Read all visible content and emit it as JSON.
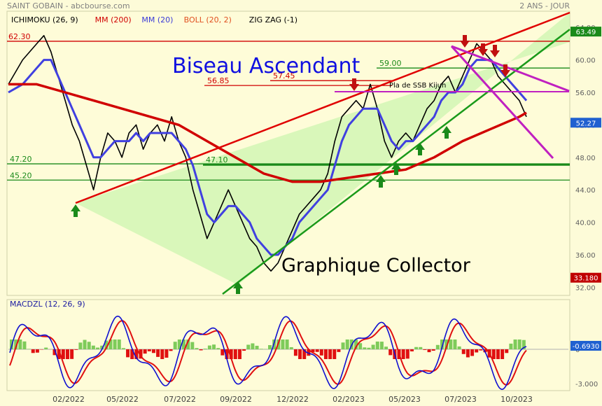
{
  "header": {
    "source": "SAINT GOBAIN - abcbourse.com",
    "period": "2 ANS - JOUR",
    "legend": [
      {
        "text": "ICHIMOKU (26, 9)",
        "color": "#000000"
      },
      {
        "text": "MM (200)",
        "color": "#d00000"
      },
      {
        "text": "MM (20)",
        "color": "#3a3ad8"
      },
      {
        "text": "BOLL (20, 2)",
        "color": "#e05020"
      },
      {
        "text": "ZIG ZAG (-1)",
        "color": "#000000"
      }
    ]
  },
  "annotations": {
    "pattern": "Biseau Ascendant",
    "collector": "Graphique Collector",
    "kijun": "Pla de SSB Kijun"
  },
  "chart_data": {
    "type": "line",
    "x_ticks": [
      "02/2022",
      "05/2022",
      "07/2022",
      "09/2022",
      "12/2022",
      "02/2023",
      "05/2023",
      "07/2023",
      "10/2023"
    ],
    "y_ticks": [
      32,
      36,
      40,
      44,
      48,
      52,
      56,
      60,
      64
    ],
    "ylim": [
      31,
      66
    ],
    "levels": [
      {
        "label": "62.30",
        "value": 62.3,
        "color": "#d00000"
      },
      {
        "label": "56.85",
        "value": 56.85,
        "color": "#d00000"
      },
      {
        "label": "57.45",
        "value": 57.45,
        "color": "#d00000"
      },
      {
        "label": "59.00",
        "value": 59.0,
        "color": "#1a8a1a"
      },
      {
        "label": "47.20",
        "value": 47.2,
        "color": "#1a8a1a"
      },
      {
        "label": "47.10",
        "value": 47.1,
        "color": "#1a8a1a"
      },
      {
        "label": "45.20",
        "value": 45.2,
        "color": "#1a8a1a"
      }
    ],
    "price_badges": [
      {
        "label": "63.49",
        "value": 63.49,
        "bg": "#1a8a1a"
      },
      {
        "label": "52.27",
        "value": 52.27,
        "bg": "#2060d0"
      },
      {
        "label": "33.180",
        "value": 33.18,
        "bg": "#c00000"
      }
    ],
    "series": [
      {
        "name": "Cours",
        "color": "#000000",
        "points": [
          [
            0,
            57
          ],
          [
            2,
            60
          ],
          [
            4,
            62
          ],
          [
            5,
            63
          ],
          [
            6,
            61
          ],
          [
            7,
            58
          ],
          [
            8,
            55
          ],
          [
            9,
            52
          ],
          [
            10,
            50
          ],
          [
            11,
            47
          ],
          [
            12,
            44
          ],
          [
            13,
            48
          ],
          [
            14,
            51
          ],
          [
            15,
            50
          ],
          [
            16,
            48
          ],
          [
            17,
            51
          ],
          [
            18,
            52
          ],
          [
            19,
            49
          ],
          [
            20,
            51
          ],
          [
            21,
            52
          ],
          [
            22,
            50
          ],
          [
            23,
            53
          ],
          [
            24,
            50
          ],
          [
            25,
            48
          ],
          [
            26,
            44
          ],
          [
            27,
            41
          ],
          [
            28,
            38
          ],
          [
            29,
            40
          ],
          [
            30,
            42
          ],
          [
            31,
            44
          ],
          [
            32,
            42
          ],
          [
            33,
            40
          ],
          [
            34,
            38
          ],
          [
            35,
            37
          ],
          [
            36,
            35
          ],
          [
            37,
            34
          ],
          [
            38,
            35
          ],
          [
            39,
            37
          ],
          [
            40,
            39
          ],
          [
            41,
            41
          ],
          [
            42,
            42
          ],
          [
            43,
            43
          ],
          [
            44,
            44
          ],
          [
            45,
            46
          ],
          [
            46,
            50
          ],
          [
            47,
            53
          ],
          [
            48,
            54
          ],
          [
            49,
            55
          ],
          [
            50,
            54
          ],
          [
            51,
            57
          ],
          [
            52,
            54
          ],
          [
            53,
            50
          ],
          [
            54,
            48
          ],
          [
            55,
            50
          ],
          [
            56,
            51
          ],
          [
            57,
            50
          ],
          [
            58,
            52
          ],
          [
            59,
            54
          ],
          [
            60,
            55
          ],
          [
            61,
            57
          ],
          [
            62,
            58
          ],
          [
            63,
            56
          ],
          [
            64,
            58
          ],
          [
            65,
            60
          ],
          [
            66,
            62
          ],
          [
            67,
            61
          ],
          [
            68,
            60
          ],
          [
            69,
            58
          ],
          [
            70,
            57
          ],
          [
            71,
            56
          ],
          [
            72,
            55
          ],
          [
            73,
            53
          ]
        ]
      },
      {
        "name": "MM (20)",
        "color": "#4040e0",
        "points": [
          [
            0,
            56
          ],
          [
            2,
            57
          ],
          [
            4,
            59
          ],
          [
            5,
            60
          ],
          [
            6,
            60
          ],
          [
            7,
            58
          ],
          [
            8,
            56
          ],
          [
            9,
            54
          ],
          [
            10,
            52
          ],
          [
            11,
            50
          ],
          [
            12,
            48
          ],
          [
            13,
            48
          ],
          [
            14,
            49
          ],
          [
            15,
            50
          ],
          [
            16,
            50
          ],
          [
            17,
            50
          ],
          [
            18,
            51
          ],
          [
            19,
            50
          ],
          [
            20,
            51
          ],
          [
            21,
            51
          ],
          [
            22,
            51
          ],
          [
            23,
            51
          ],
          [
            24,
            50
          ],
          [
            25,
            49
          ],
          [
            26,
            47
          ],
          [
            27,
            44
          ],
          [
            28,
            41
          ],
          [
            29,
            40
          ],
          [
            30,
            41
          ],
          [
            31,
            42
          ],
          [
            32,
            42
          ],
          [
            33,
            41
          ],
          [
            34,
            40
          ],
          [
            35,
            38
          ],
          [
            36,
            37
          ],
          [
            37,
            36
          ],
          [
            38,
            36
          ],
          [
            39,
            37
          ],
          [
            40,
            38
          ],
          [
            41,
            40
          ],
          [
            42,
            41
          ],
          [
            43,
            42
          ],
          [
            44,
            43
          ],
          [
            45,
            44
          ],
          [
            46,
            47
          ],
          [
            47,
            50
          ],
          [
            48,
            52
          ],
          [
            49,
            53
          ],
          [
            50,
            54
          ],
          [
            51,
            54
          ],
          [
            52,
            54
          ],
          [
            53,
            52
          ],
          [
            54,
            50
          ],
          [
            55,
            49
          ],
          [
            56,
            50
          ],
          [
            57,
            50
          ],
          [
            58,
            51
          ],
          [
            59,
            52
          ],
          [
            60,
            53
          ],
          [
            61,
            55
          ],
          [
            62,
            56
          ],
          [
            63,
            56
          ],
          [
            64,
            57
          ],
          [
            65,
            59
          ],
          [
            66,
            60
          ],
          [
            67,
            60
          ],
          [
            68,
            60
          ],
          [
            69,
            59
          ],
          [
            70,
            58
          ],
          [
            71,
            57
          ],
          [
            72,
            56
          ],
          [
            73,
            55
          ]
        ]
      },
      {
        "name": "MM (200)",
        "color": "#d00000",
        "points": [
          [
            0,
            57
          ],
          [
            4,
            57
          ],
          [
            8,
            56
          ],
          [
            12,
            55
          ],
          [
            16,
            54
          ],
          [
            20,
            53
          ],
          [
            24,
            52
          ],
          [
            28,
            50
          ],
          [
            32,
            48
          ],
          [
            36,
            46
          ],
          [
            40,
            45
          ],
          [
            44,
            45
          ],
          [
            48,
            45.5
          ],
          [
            52,
            46
          ],
          [
            56,
            46.5
          ],
          [
            60,
            48
          ],
          [
            64,
            50
          ],
          [
            68,
            51.5
          ],
          [
            72,
            53
          ],
          [
            73,
            53.5
          ]
        ]
      }
    ],
    "macd": {
      "name": "MACDZL (12, 26, 9)",
      "last_label": "-0.6930",
      "y_ticks": [
        {
          "label": "0",
          "value": 0
        },
        {
          "label": "-3.000",
          "value": -3
        }
      ]
    }
  }
}
